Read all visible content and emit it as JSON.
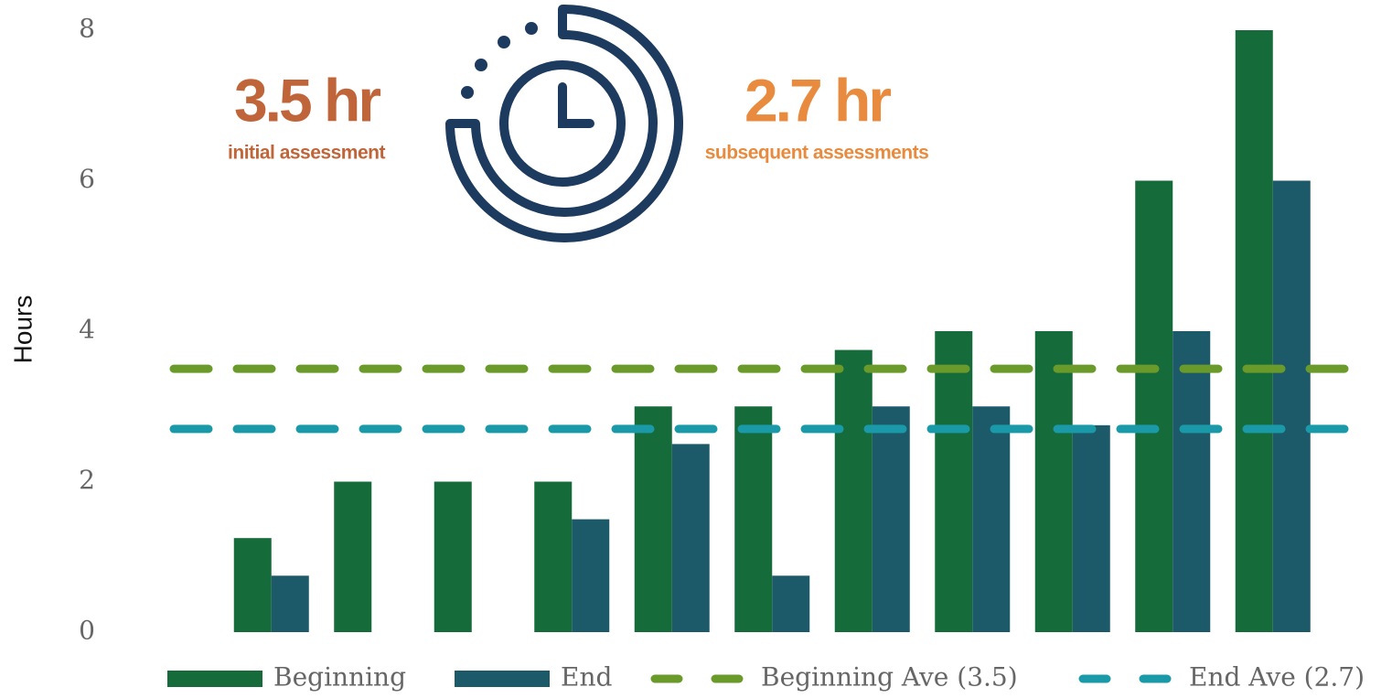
{
  "chart_data": {
    "type": "bar",
    "y_label": "Hours",
    "annotations": [
      {
        "text": "3.5 hr",
        "color": "#c0653a"
      },
      {
        "text": "initial assessment",
        "color": "#c0653a"
      },
      {
        "text": "2.7 hr",
        "color": "#e88b3e"
      },
      {
        "text": "subsequent assessments",
        "color": "#e88b3e"
      }
    ],
    "categories": [
      null,
      null,
      null,
      null,
      null,
      null,
      null,
      null,
      null,
      null,
      null
    ],
    "series": [
      {
        "name": "Beginning",
        "color": "#156b3a",
        "values": [
          1.25,
          2,
          2,
          2,
          3,
          3,
          3.75,
          4,
          4,
          6,
          8
        ]
      },
      {
        "name": "End",
        "color": "#1c5a6a",
        "values": [
          0.75,
          0,
          0,
          1.5,
          2.5,
          0.75,
          3,
          3,
          2.75,
          4,
          6
        ]
      }
    ],
    "reference_lines": [
      {
        "name": "Beginning Ave (3.5)",
        "color": "#6a9a2a",
        "value": 3.5
      },
      {
        "name": "End Ave (2.7)",
        "color": "#1a9aa8",
        "value": 2.7
      }
    ],
    "ylim": [
      0,
      8
    ],
    "yticks": [
      0,
      2,
      4,
      6,
      8
    ],
    "grid": false
  }
}
